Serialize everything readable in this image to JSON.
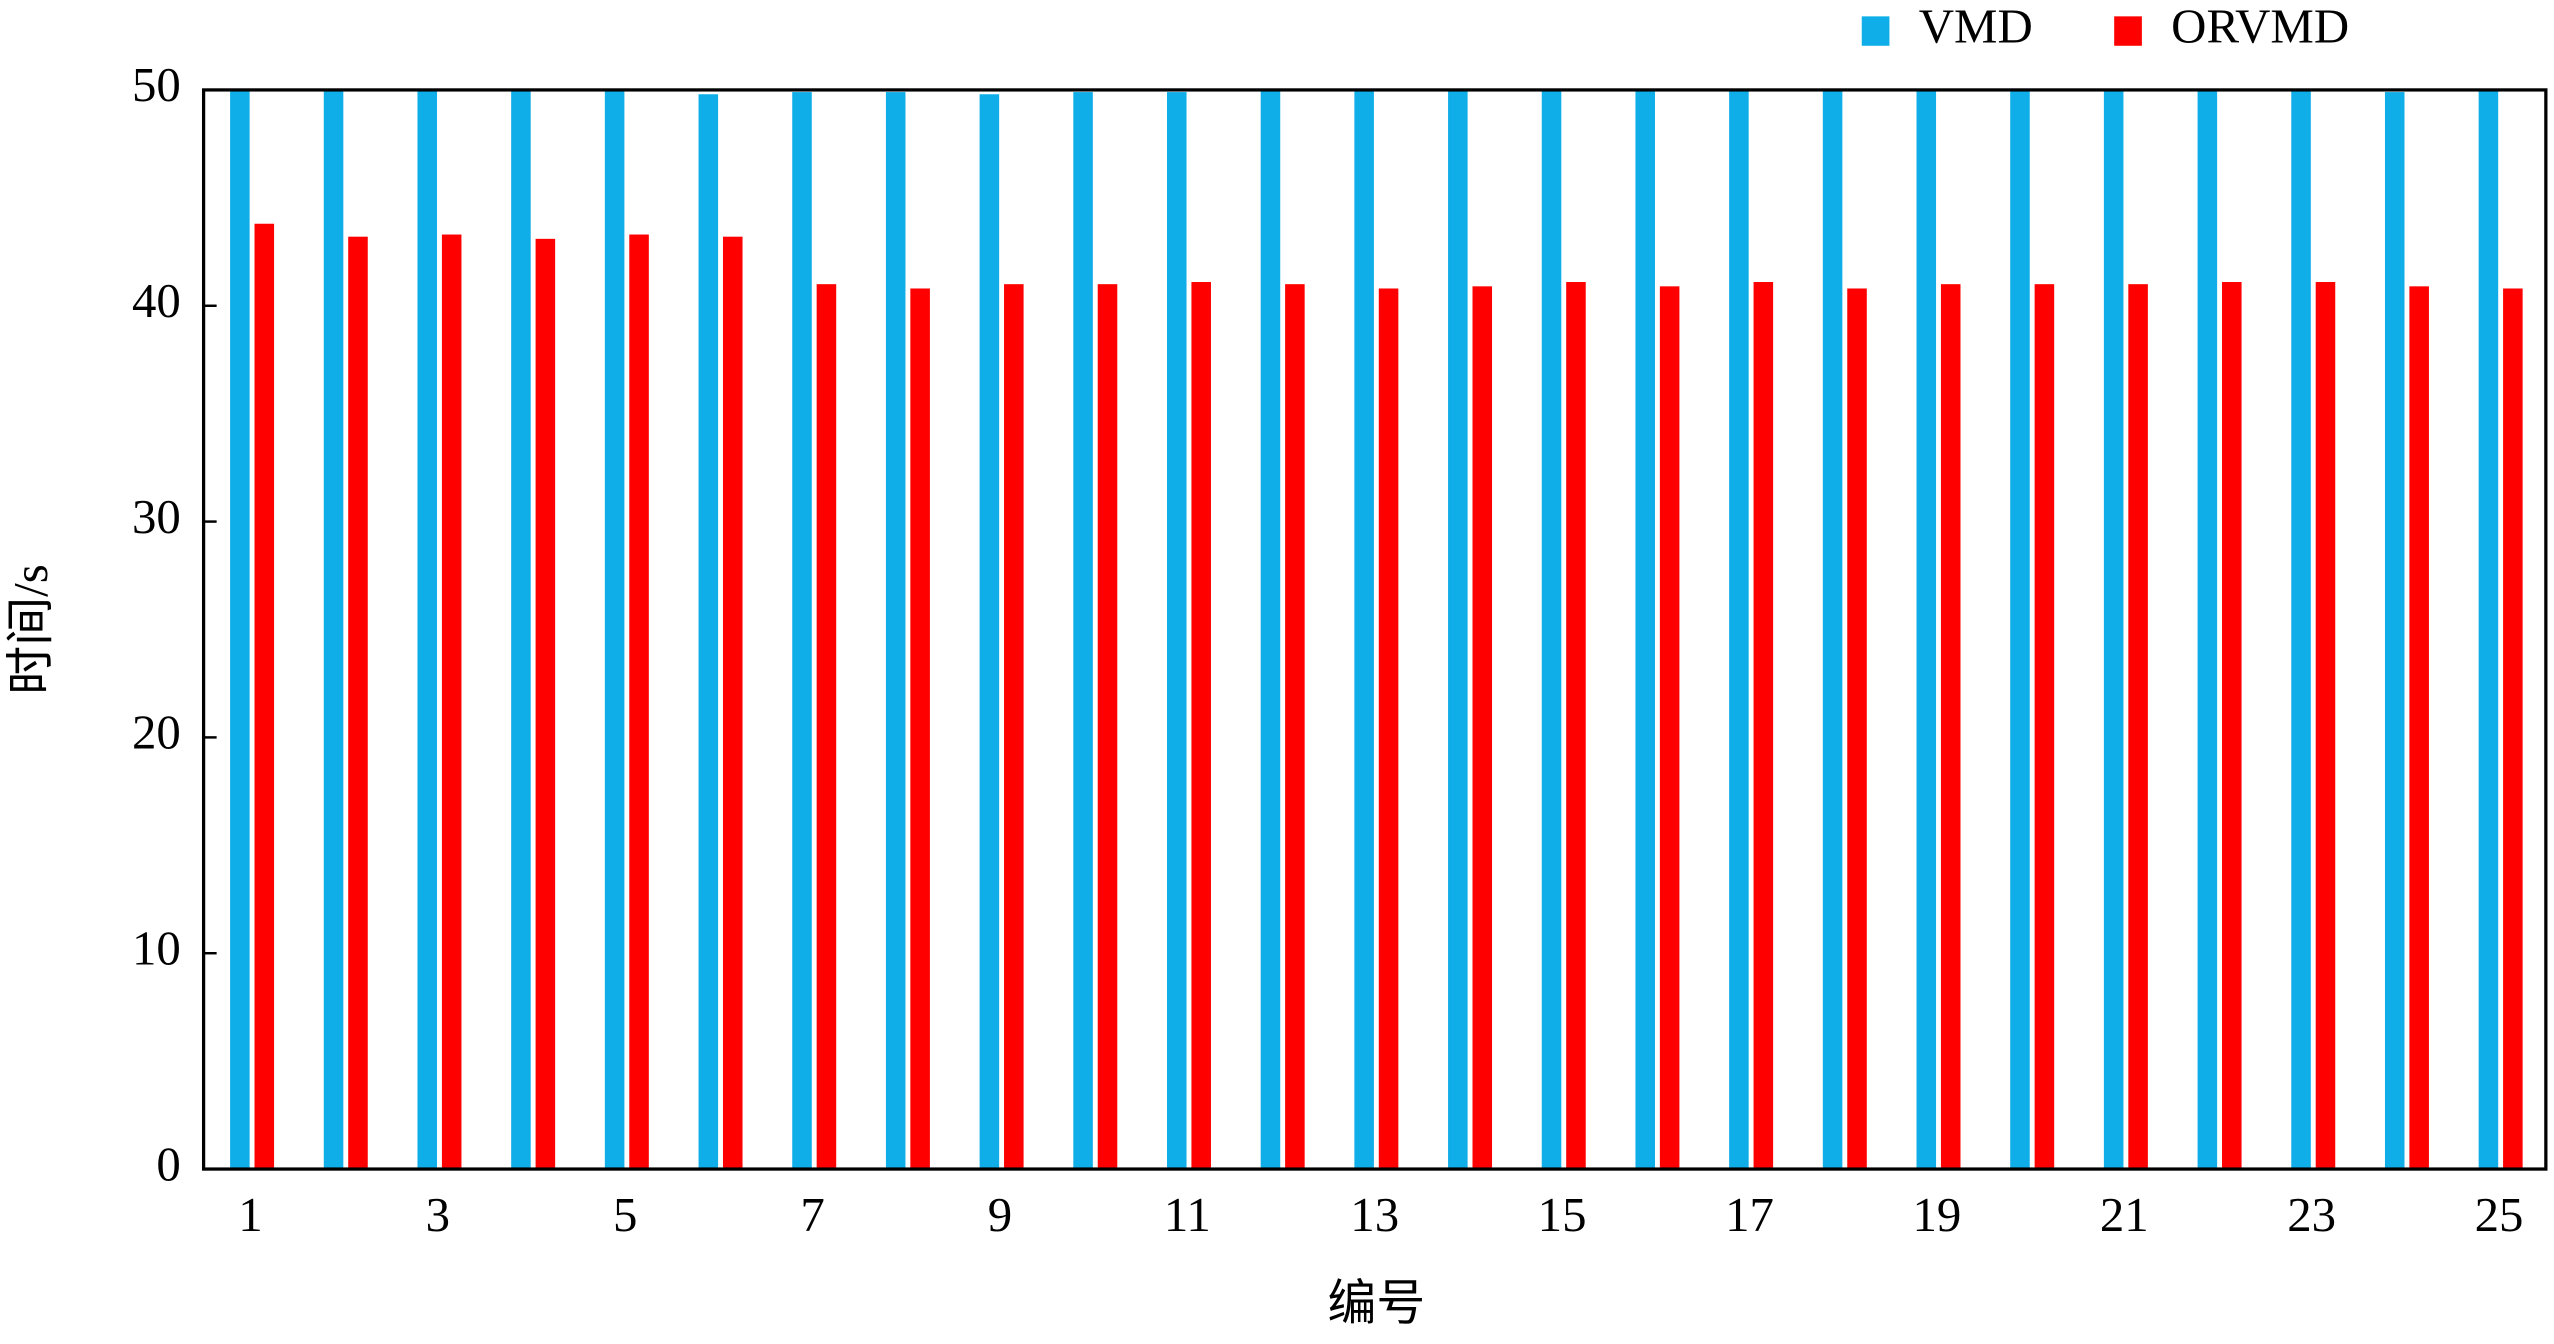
{
  "chart_data": {
    "type": "bar",
    "x_label": "编号",
    "y_label": "时间/s",
    "categories": [
      "1",
      null,
      "3",
      null,
      "5",
      null,
      "7",
      null,
      "9",
      null,
      "11",
      null,
      "13",
      null,
      "15",
      null,
      "17",
      null,
      "19",
      null,
      "21",
      null,
      "23",
      null,
      "25"
    ],
    "series": [
      {
        "name": "VMD",
        "color": "#10aee8",
        "values": [
          50,
          50,
          50,
          50,
          50,
          49.8,
          49.9,
          49.9,
          49.8,
          49.9,
          49.9,
          50,
          50,
          50,
          50,
          50,
          50,
          50,
          50,
          50,
          50,
          50,
          50,
          49.9,
          50
        ]
      },
      {
        "name": "ORVMD",
        "color": "#ff0000",
        "values": [
          43.8,
          43.2,
          43.3,
          43.1,
          43.3,
          43.2,
          41.0,
          40.8,
          41.0,
          41.0,
          41.1,
          41.0,
          40.8,
          40.9,
          41.1,
          40.9,
          41.1,
          40.8,
          41.0,
          41.0,
          41.0,
          41.1,
          41.1,
          40.9,
          40.8
        ]
      }
    ],
    "ylim": [
      0,
      50
    ],
    "yticks": [
      0,
      10,
      20,
      30,
      40,
      50
    ],
    "grid": false,
    "legend": "top-right"
  }
}
